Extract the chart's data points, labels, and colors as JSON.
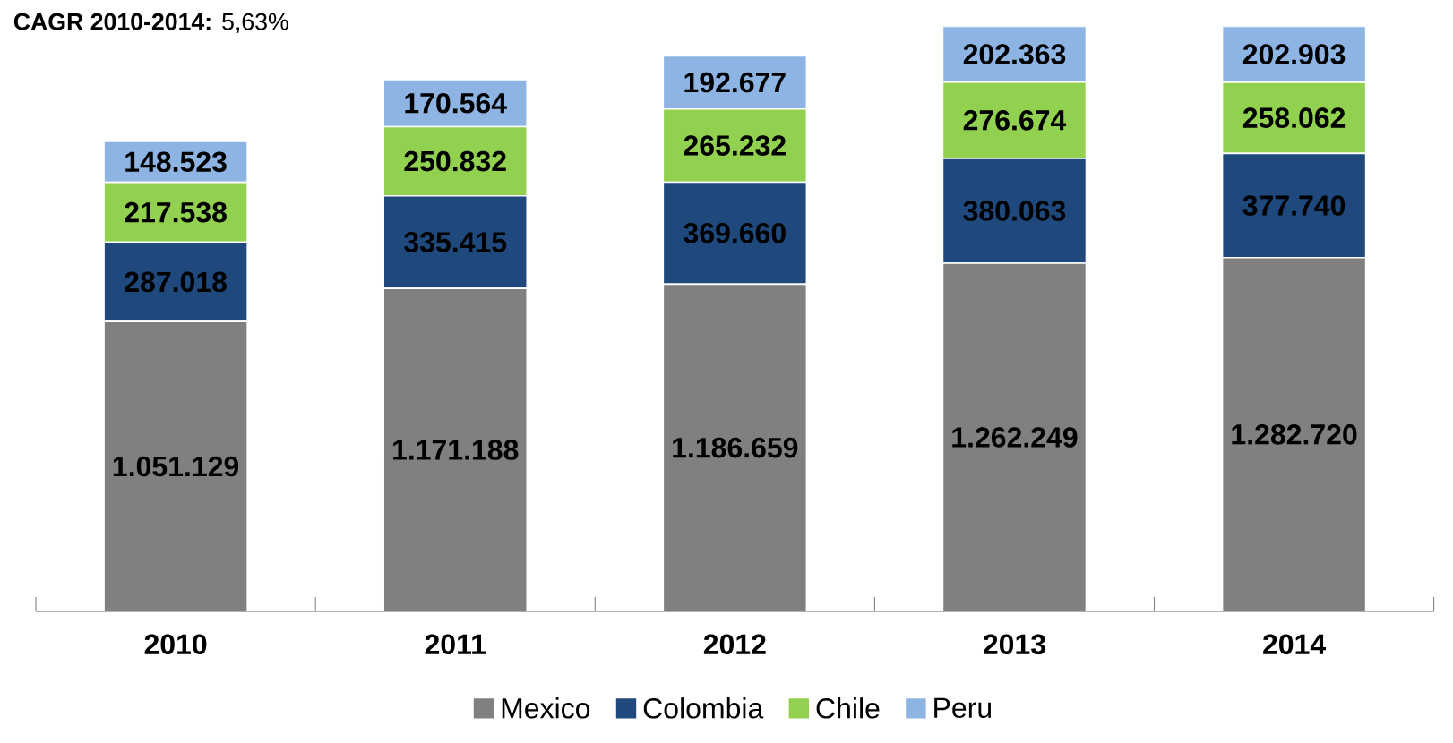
{
  "chart_data": {
    "type": "bar",
    "stacked": true,
    "annotations": [
      "**CAGR 2010-2014:** 5,63%"
    ],
    "categories": [
      "2010",
      "2011",
      "2012",
      "2013",
      "2014"
    ],
    "series": [
      {
        "name": "Mexico",
        "color": "#808080",
        "values": [
          1051129,
          1171188,
          1186659,
          1262249,
          1282720
        ],
        "value_labels": [
          "1.051.129",
          "1.171.188",
          "1.186.659",
          "1.262.249",
          "1.282.720"
        ]
      },
      {
        "name": "Colombia",
        "color": "#1f497d",
        "values": [
          287018,
          335415,
          369660,
          380063,
          377740
        ],
        "value_labels": [
          "287.018",
          "335.415",
          "369.660",
          "380.063",
          "377.740"
        ]
      },
      {
        "name": "Chile",
        "color": "#92d050",
        "values": [
          217538,
          250832,
          265232,
          276674,
          258062
        ],
        "value_labels": [
          "217.538",
          "250.832",
          "265.232",
          "276.674",
          "258.062"
        ]
      },
      {
        "name": "Peru",
        "color": "#8db4e2",
        "values": [
          148523,
          170564,
          192677,
          202363,
          202903
        ],
        "value_labels": [
          "148.523",
          "170.564",
          "192.677",
          "202.363",
          "202.903"
        ]
      }
    ],
    "legend": "bottom"
  }
}
